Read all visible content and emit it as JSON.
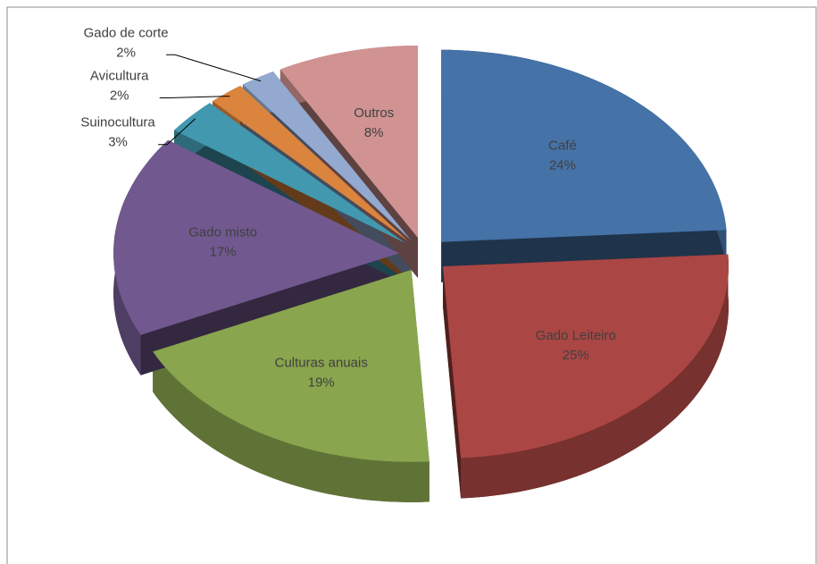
{
  "chart_data": {
    "type": "pie",
    "categories": [
      "Café",
      "Gado Leiteiro",
      "Culturas anuais",
      "Gado misto",
      "Suinocultura",
      "Avicultura",
      "Gado de corte",
      "Outros"
    ],
    "values": [
      24,
      25,
      19,
      17,
      3,
      2,
      2,
      8
    ],
    "value_labels": [
      "24%",
      "25%",
      "19%",
      "17%",
      "3%",
      "2%",
      "2%",
      "8%"
    ],
    "colors": [
      "#4572a7",
      "#aa4643",
      "#89a54e",
      "#71588f",
      "#4198af",
      "#db843d",
      "#93a9cf",
      "#d19392"
    ]
  }
}
